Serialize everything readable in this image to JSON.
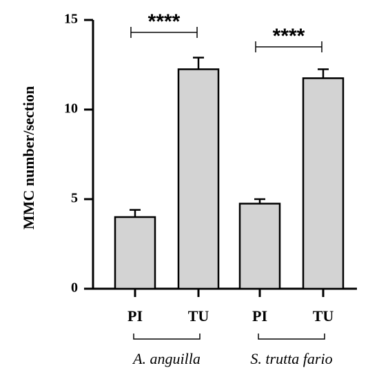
{
  "chart_data": {
    "type": "bar",
    "ylabel": "MMC number/section",
    "ylim": [
      0,
      15
    ],
    "yticks": [
      0,
      5,
      10,
      15
    ],
    "grid": false,
    "bars": [
      {
        "category": "PI",
        "group": "A. anguilla",
        "value": 4.0,
        "error": 0.4
      },
      {
        "category": "TU",
        "group": "A. anguilla",
        "value": 12.25,
        "error": 0.65
      },
      {
        "category": "PI",
        "group": "S. trutta fario",
        "value": 4.75,
        "error": 0.25
      },
      {
        "category": "TU",
        "group": "S. trutta fario",
        "value": 11.75,
        "error": 0.5
      }
    ],
    "groups": [
      "A. anguilla",
      "S. trutta fario"
    ],
    "significance": [
      {
        "from": 0,
        "to": 1,
        "label": "****"
      },
      {
        "from": 2,
        "to": 3,
        "label": "****"
      }
    ],
    "colors": {
      "bar_fill": "#d3d3d3",
      "bar_stroke": "#000000"
    }
  }
}
